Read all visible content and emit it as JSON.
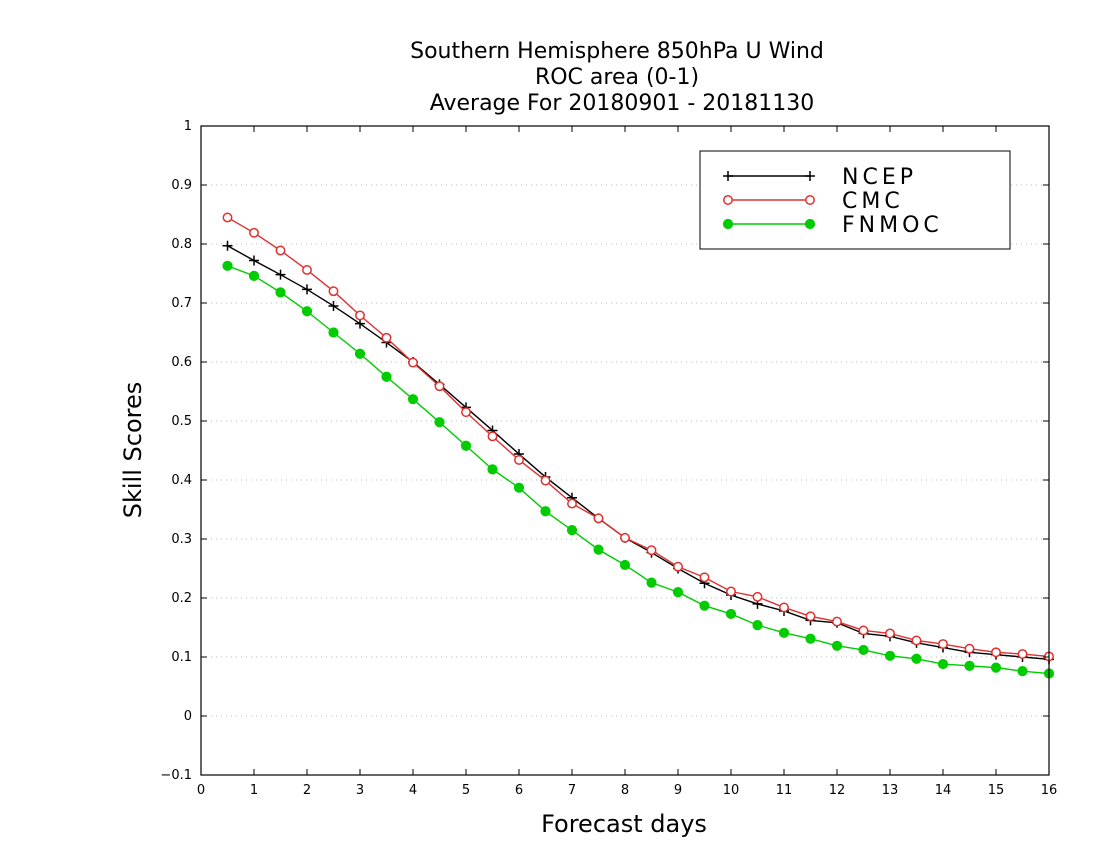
{
  "chart_data": {
    "type": "line",
    "title": [
      "Southern Hemisphere 850hPa U Wind",
      "ROC area (0-1)",
      "Average For 20180901 - 20181130"
    ],
    "xlabel": "Forecast days",
    "ylabel": "Skill Scores",
    "xlim": [
      0,
      16
    ],
    "ylim": [
      -0.1,
      1
    ],
    "xticks": [
      "0",
      "1",
      "2",
      "3",
      "4",
      "5",
      "6",
      "7",
      "8",
      "9",
      "10",
      "11",
      "12",
      "13",
      "14",
      "15",
      "16"
    ],
    "yticks": [
      "−0.1",
      "0",
      "0.1",
      "0.2",
      "0.3",
      "0.4",
      "0.5",
      "0.6",
      "0.7",
      "0.8",
      "0.9",
      "1"
    ],
    "grid": true,
    "legend_position": "top-right",
    "x": [
      0.5,
      1,
      1.5,
      2,
      2.5,
      3,
      3.5,
      4,
      4.5,
      5,
      5.5,
      6,
      6.5,
      7,
      7.5,
      8,
      8.5,
      9,
      9.5,
      10,
      10.5,
      11,
      11.5,
      12,
      12.5,
      13,
      13.5,
      14,
      14.5,
      15,
      15.5,
      16
    ],
    "series": [
      {
        "name": "NCEP",
        "color": "#000000",
        "marker": "plus",
        "values": [
          0.797,
          0.772,
          0.748,
          0.723,
          0.695,
          0.665,
          0.633,
          0.6,
          0.562,
          0.523,
          0.484,
          0.444,
          0.405,
          0.37,
          0.335,
          0.302,
          0.277,
          0.25,
          0.225,
          0.205,
          0.19,
          0.178,
          0.162,
          0.158,
          0.14,
          0.135,
          0.124,
          0.116,
          0.108,
          0.104,
          0.1,
          0.096
        ]
      },
      {
        "name": "CMC",
        "color": "#e03030",
        "marker": "open-circle",
        "values": [
          0.845,
          0.819,
          0.789,
          0.756,
          0.72,
          0.679,
          0.641,
          0.599,
          0.559,
          0.515,
          0.474,
          0.434,
          0.399,
          0.36,
          0.335,
          0.302,
          0.281,
          0.253,
          0.235,
          0.211,
          0.202,
          0.184,
          0.169,
          0.16,
          0.145,
          0.14,
          0.128,
          0.122,
          0.114,
          0.108,
          0.105,
          0.101
        ]
      },
      {
        "name": "FNMOC",
        "color": "#00cc00",
        "marker": "filled-circle",
        "values": [
          0.763,
          0.746,
          0.718,
          0.686,
          0.65,
          0.614,
          0.575,
          0.537,
          0.498,
          0.458,
          0.418,
          0.387,
          0.347,
          0.315,
          0.282,
          0.256,
          0.226,
          0.21,
          0.187,
          0.173,
          0.154,
          0.141,
          0.131,
          0.119,
          0.112,
          0.102,
          0.097,
          0.088,
          0.085,
          0.082,
          0.076,
          0.072
        ]
      }
    ]
  }
}
